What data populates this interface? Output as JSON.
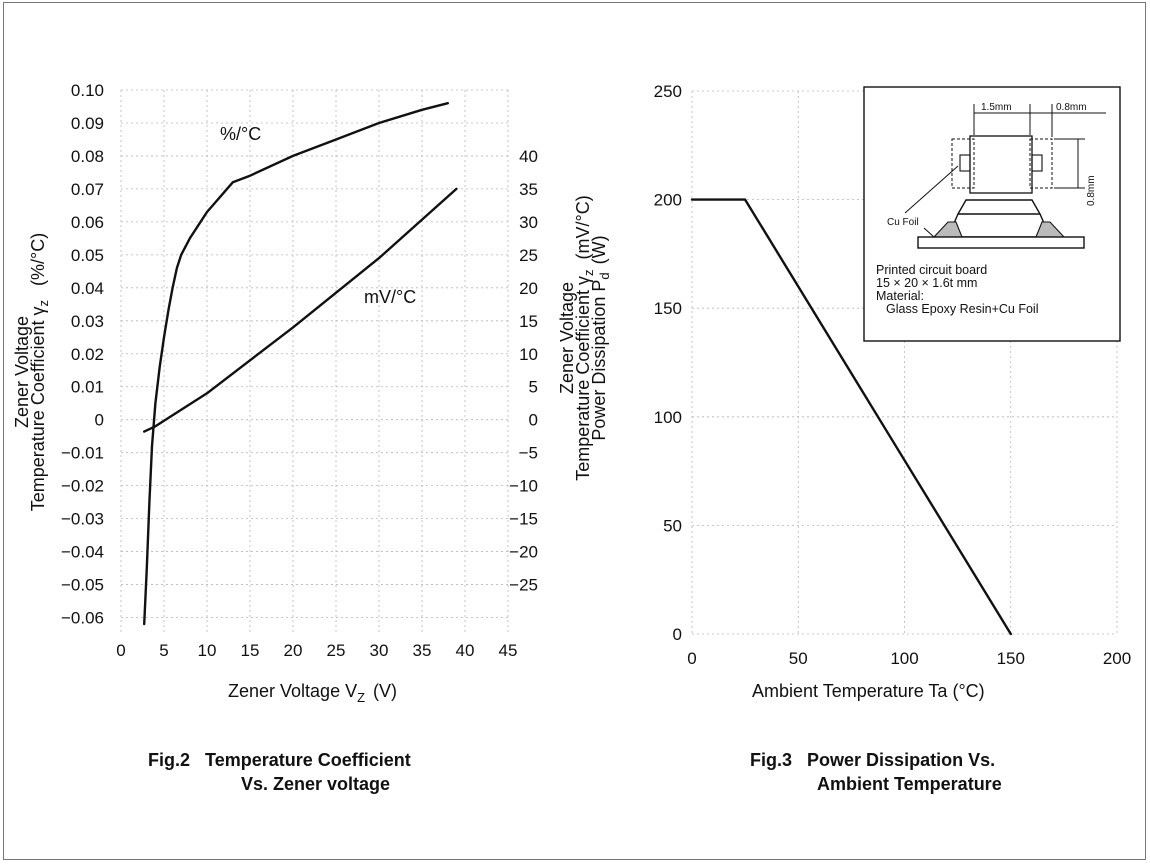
{
  "chart_data": [
    {
      "type": "line",
      "xlabel": "Zener Voltage  V",
      "xlabel_sub": "Z",
      "xlabel_unit": "(V)",
      "ylabel": "Zener Voltage",
      "ylabel2": "Temperature Coefficient  γ",
      "ylabel2_sub": "z",
      "ylabel2_unit": "(%/°C)",
      "y2label": "Zener Voltage",
      "y2label2": "Temperature Coefficient  γ",
      "y2label2_sub": "z",
      "y2label2_unit": "(mV/°C)",
      "xlim": [
        0,
        45
      ],
      "ylim": [
        -0.065,
        0.1
      ],
      "y2lim": [
        -32.5,
        50
      ],
      "x_ticks": [
        "0",
        "5",
        "10",
        "15",
        "20",
        "25",
        "30",
        "35",
        "40",
        "45"
      ],
      "y_ticks": [
        "0.10",
        "0.09",
        "0.08",
        "0.07",
        "0.06",
        "0.05",
        "0.04",
        "0.03",
        "0.02",
        "0.01",
        "0",
        "−0.01",
        "−0.02",
        "−0.03",
        "−0.04",
        "−0.05",
        "−0.06"
      ],
      "y2_ticks": [
        "40",
        "35",
        "30",
        "25",
        "20",
        "15",
        "10",
        "5",
        "0",
        "−5",
        "−10",
        "−15",
        "−20",
        "−25"
      ],
      "series": [
        {
          "name": "%/°C",
          "axis": "left",
          "x": [
            2.7,
            3.0,
            3.3,
            3.6,
            4.0,
            4.5,
            5.0,
            5.5,
            6.0,
            6.5,
            7.0,
            8.0,
            9.0,
            10.0,
            11.0,
            12.0,
            13.0,
            15.0,
            20.0,
            25.0,
            30.0,
            35.0,
            38.0
          ],
          "values": [
            -0.062,
            -0.045,
            -0.025,
            -0.008,
            0.005,
            0.016,
            0.025,
            0.033,
            0.04,
            0.046,
            0.05,
            0.055,
            0.059,
            0.063,
            0.066,
            0.069,
            0.072,
            0.074,
            0.08,
            0.085,
            0.09,
            0.094,
            0.096
          ]
        },
        {
          "name": "mV/°C",
          "axis": "right",
          "x": [
            2.7,
            4.0,
            10.0,
            20.0,
            30.0,
            39.0
          ],
          "values": [
            -1.8,
            -1.0,
            4.0,
            14.0,
            24.5,
            35.0
          ]
        }
      ]
    },
    {
      "type": "line",
      "xlabel": "Ambient Temperature Ta (°C)",
      "ylabel": "Power Dissipation  P",
      "ylabel_sub": "d",
      "ylabel_unit": "(W)",
      "xlim": [
        0,
        200
      ],
      "ylim": [
        0,
        250
      ],
      "x_ticks": [
        "0",
        "50",
        "100",
        "150",
        "200"
      ],
      "y_ticks": [
        "250",
        "200",
        "150",
        "100",
        "50",
        "0"
      ],
      "series": [
        {
          "x": [
            0,
            25,
            150
          ],
          "values": [
            200,
            200,
            0
          ]
        }
      ]
    }
  ],
  "captions": {
    "fig2_num": "Fig.2",
    "fig2_line1": "Temperature Coefficient",
    "fig2_line2": "Vs. Zener voltage",
    "fig3_num": "Fig.3",
    "fig3_line1": "Power Dissipation Vs.",
    "fig3_line2": "Ambient Temperature"
  },
  "inset": {
    "dim_a": "1.5mm",
    "dim_b": "0.8mm",
    "dim_c": "0.8mm",
    "foil_label": "Cu Foil",
    "text1": "Printed circuit board",
    "text2": "15 × 20 × 1.6t mm",
    "text3": "Material:",
    "text4": "Glass Epoxy Resin+Cu Foil"
  }
}
